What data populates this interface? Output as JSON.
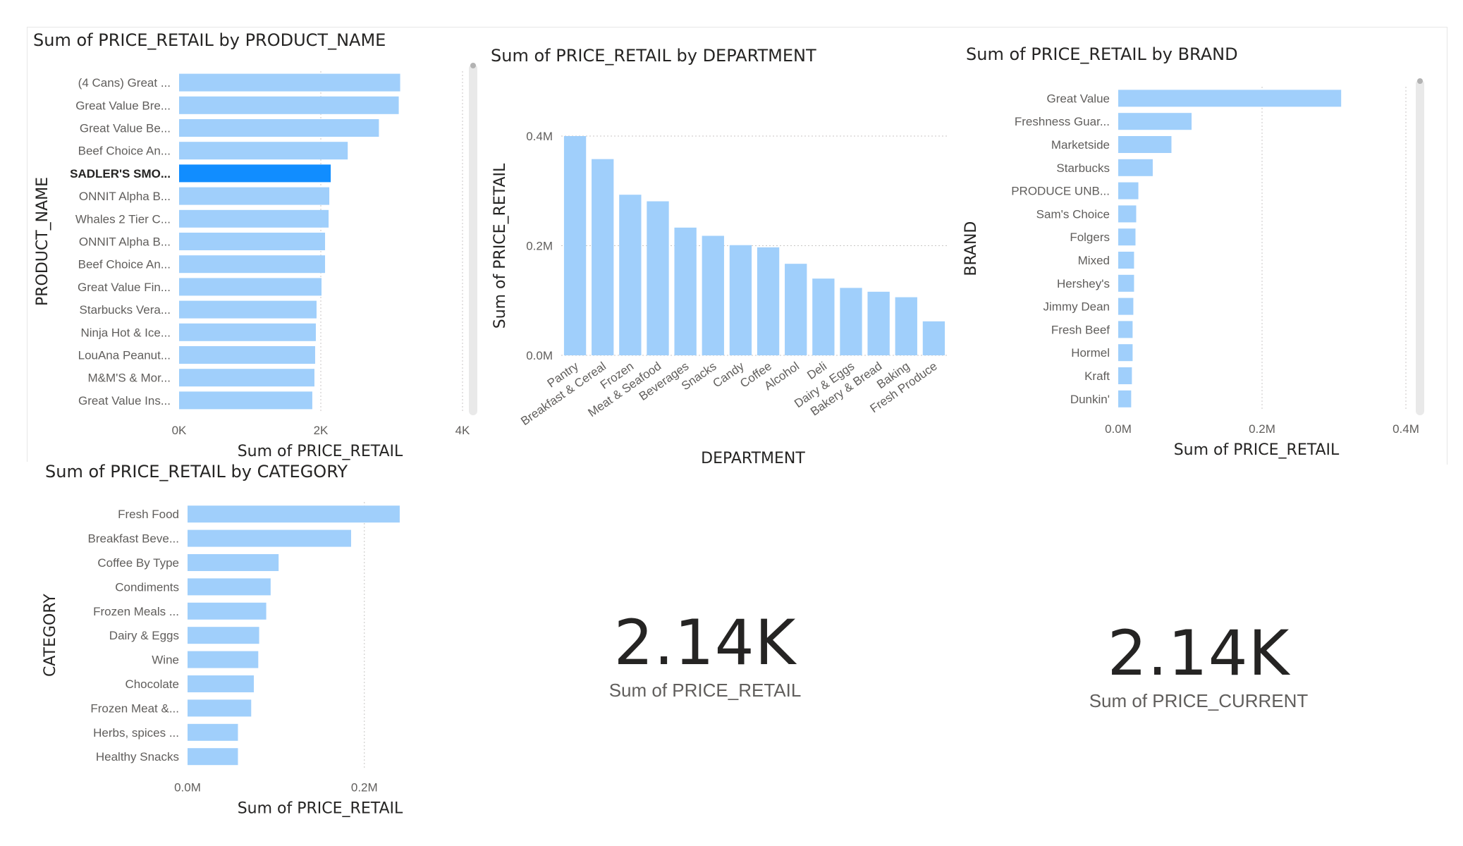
{
  "colors": {
    "bar": "#a0cffb",
    "bar_selected": "#118dff",
    "text": "#252423",
    "axis_text": "#605e5c",
    "grid": "#c8c6c4"
  },
  "cards": [
    {
      "value": "2.14K",
      "label": "Sum of PRICE_RETAIL"
    },
    {
      "value": "2.14K",
      "label": "Sum of PRICE_CURRENT"
    }
  ],
  "chart_data": [
    {
      "id": "product",
      "type": "bar",
      "orientation": "horizontal",
      "title": "Sum of PRICE_RETAIL by PRODUCT_NAME",
      "xlabel": "Sum of PRICE_RETAIL",
      "ylabel": "PRODUCT_NAME",
      "xlim": [
        0,
        4000
      ],
      "xticks": [
        0,
        2000,
        4000
      ],
      "xtick_labels": [
        "0K",
        "2K",
        "4K"
      ],
      "selected_index": 4,
      "categories": [
        "(4 Cans) Great ...",
        "Great Value Bre...",
        "Great Value Be...",
        "Beef Choice An...",
        "SADLER'S SMO...",
        "ONNIT Alpha B...",
        "Whales 2 Tier C...",
        "ONNIT Alpha B...",
        "Beef Choice An...",
        "Great Value Fin...",
        "Starbucks Vera...",
        "Ninja Hot & Ice...",
        "LouAna Peanut...",
        "M&M'S & Mor...",
        "Great Value Ins..."
      ],
      "values": [
        3120,
        3100,
        2820,
        2380,
        2140,
        2120,
        2110,
        2060,
        2060,
        2010,
        1940,
        1930,
        1920,
        1910,
        1880
      ]
    },
    {
      "id": "department",
      "type": "bar",
      "orientation": "vertical",
      "title": "Sum of PRICE_RETAIL by DEPARTMENT",
      "xlabel": "DEPARTMENT",
      "ylabel": "Sum of PRICE_RETAIL",
      "ylim": [
        0,
        400000
      ],
      "yticks": [
        0,
        200000,
        400000
      ],
      "ytick_labels": [
        "0.0M",
        "0.2M",
        "0.4M"
      ],
      "categories": [
        "Pantry",
        "Breakfast & Cereal",
        "Frozen",
        "Meat & Seafood",
        "Beverages",
        "Snacks",
        "Candy",
        "Coffee",
        "Alcohol",
        "Deli",
        "Dairy & Eggs",
        "Bakery & Bread",
        "Baking",
        "Fresh Produce"
      ],
      "values": [
        400000,
        358000,
        293000,
        281000,
        233000,
        218000,
        201000,
        197000,
        167000,
        140000,
        123000,
        116000,
        106000,
        62000
      ]
    },
    {
      "id": "brand",
      "type": "bar",
      "orientation": "horizontal",
      "title": "Sum of PRICE_RETAIL by BRAND",
      "xlabel": "Sum of PRICE_RETAIL",
      "ylabel": "BRAND",
      "xlim": [
        0,
        400000
      ],
      "xticks": [
        0,
        200000,
        400000
      ],
      "xtick_labels": [
        "0.0M",
        "0.2M",
        "0.4M"
      ],
      "categories": [
        "Great Value",
        "Freshness Guar...",
        "Marketside",
        "Starbucks",
        "PRODUCE UNB...",
        "Sam's Choice",
        "Folgers",
        "Mixed",
        "Hershey's",
        "Jimmy Dean",
        "Fresh Beef",
        "Hormel",
        "Kraft",
        "Dunkin'"
      ],
      "values": [
        310000,
        102000,
        74000,
        48000,
        28000,
        25000,
        24000,
        22000,
        22000,
        21000,
        20000,
        20000,
        19000,
        18000
      ]
    },
    {
      "id": "category",
      "type": "bar",
      "orientation": "horizontal",
      "title": "Sum of PRICE_RETAIL by CATEGORY",
      "xlabel": "Sum of PRICE_RETAIL",
      "ylabel": "CATEGORY",
      "xlim": [
        0,
        260000
      ],
      "xticks": [
        0,
        200000
      ],
      "xtick_labels": [
        "0.0M",
        "0.2M"
      ],
      "categories": [
        "Fresh Food",
        "Breakfast Beve...",
        "Coffee By Type",
        "Condiments",
        "Frozen Meals ...",
        "Dairy & Eggs",
        "Wine",
        "Chocolate",
        "Frozen Meat &...",
        "Herbs, spices ...",
        "Healthy Snacks"
      ],
      "values": [
        240000,
        185000,
        103000,
        94000,
        89000,
        81000,
        80000,
        75000,
        72000,
        57000,
        57000
      ]
    }
  ]
}
